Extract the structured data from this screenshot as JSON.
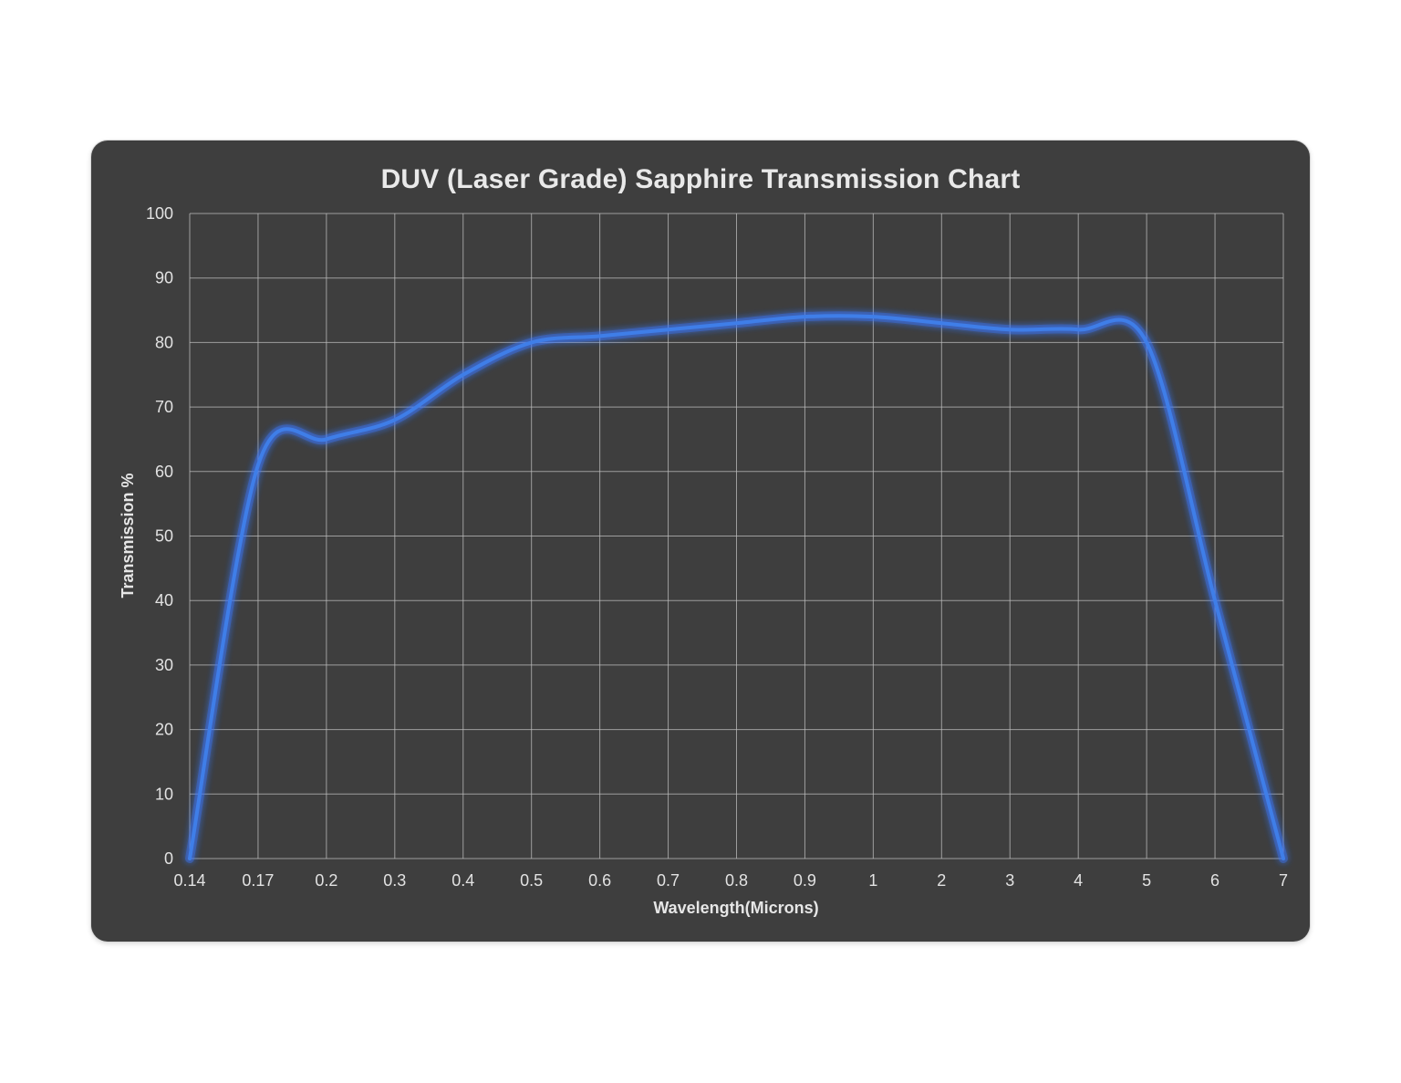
{
  "chart_data": {
    "type": "line",
    "title": "DUV (Laser Grade) Sapphire Transmission Chart",
    "xlabel": "Wavelength(Microns)",
    "ylabel": "Transmission %",
    "x_scale": "categorical",
    "categories": [
      "0.14",
      "0.17",
      "0.2",
      "0.3",
      "0.4",
      "0.5",
      "0.6",
      "0.7",
      "0.8",
      "0.9",
      "1",
      "2",
      "3",
      "4",
      "5",
      "6",
      "7"
    ],
    "ylim": [
      0,
      100
    ],
    "yticks": [
      0,
      10,
      20,
      30,
      40,
      50,
      60,
      70,
      80,
      90,
      100
    ],
    "grid": true,
    "legend": "none",
    "series": [
      {
        "values": [
          0,
          61,
          65,
          68,
          75,
          80,
          81,
          82,
          83,
          84,
          84,
          83,
          82,
          82,
          80,
          40,
          0
        ],
        "color": "#3f7ee8"
      }
    ],
    "colors": {
      "background": "#3e3e3e",
      "grid": "#bdbdbd",
      "line": "#3f7ee8",
      "line_glow": "#3b78ff",
      "text": "#e2e2e2"
    }
  }
}
